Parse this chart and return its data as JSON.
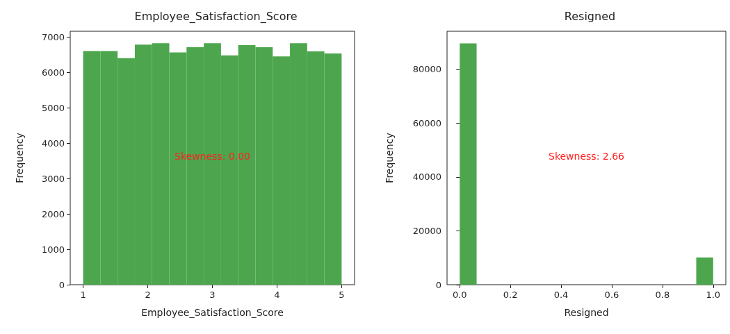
{
  "chart_data": [
    {
      "type": "histogram",
      "title": "Employee_Satisfaction_Score",
      "xlabel": "Employee_Satisfaction_Score",
      "ylabel": "Frequency",
      "color": "#4da64d",
      "bins": [
        1,
        1.2667,
        1.5333,
        1.8,
        2.0667,
        2.3333,
        2.6,
        2.8667,
        3.1333,
        3.4,
        3.6667,
        3.9333,
        4.2,
        4.4667,
        4.7333,
        5
      ],
      "values": [
        6600,
        6600,
        6400,
        6780,
        6820,
        6560,
        6710,
        6820,
        6480,
        6770,
        6710,
        6450,
        6820,
        6590,
        6530
      ],
      "xlim": [
        0.8,
        5.2
      ],
      "xticks": [
        1,
        2,
        3,
        4,
        5
      ],
      "ylim": [
        0,
        7160
      ],
      "yticks": [
        0,
        1000,
        2000,
        3000,
        4000,
        5000,
        6000,
        7000
      ],
      "annotations": [
        "Skewness: 0.00"
      ],
      "grid": false
    },
    {
      "type": "histogram",
      "title": "Resigned",
      "xlabel": "Resigned",
      "ylabel": "Frequency",
      "color": "#4da64d",
      "bins": [
        0,
        0.0667,
        0.1333,
        0.2,
        0.2667,
        0.3333,
        0.4,
        0.4667,
        0.5333,
        0.6,
        0.6667,
        0.7333,
        0.8,
        0.8667,
        0.9333,
        1
      ],
      "values": [
        89700,
        0,
        0,
        0,
        0,
        0,
        0,
        0,
        0,
        0,
        0,
        0,
        0,
        0,
        10100
      ],
      "xlim": [
        -0.05,
        1.05
      ],
      "xticks": [
        {
          "value": 0,
          "label": "0.0"
        },
        0.2,
        0.4,
        0.6,
        0.8,
        {
          "value": 1,
          "label": "1.0"
        }
      ],
      "ylim": [
        0,
        94190
      ],
      "yticks": [
        0,
        20000,
        40000,
        60000,
        80000
      ],
      "annotations": [
        "Skewness: 2.66"
      ],
      "grid": false
    }
  ]
}
